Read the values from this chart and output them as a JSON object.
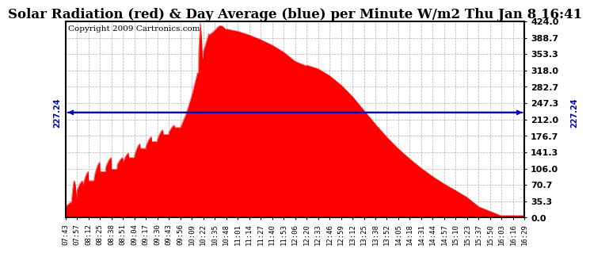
{
  "title": "Solar Radiation (red) & Day Average (blue) per Minute W/m2 Thu Jan 8 16:41",
  "copyright": "Copyright 2009 Cartronics.com",
  "y_min": 0.0,
  "y_max": 424.0,
  "y_ticks": [
    0.0,
    35.3,
    70.7,
    106.0,
    141.3,
    176.7,
    212.0,
    247.3,
    282.7,
    318.0,
    353.3,
    388.7,
    424.0
  ],
  "y_tick_labels": [
    "0.0",
    "35.3",
    "70.7",
    "106.0",
    "141.3",
    "176.7",
    "212.0",
    "247.3",
    "282.7",
    "318.0",
    "353.3",
    "388.7",
    "424.0"
  ],
  "avg_line_y": 227.24,
  "avg_label": "227.24",
  "fill_color": "#FF0000",
  "line_color": "#FF0000",
  "avg_line_color": "#0000BB",
  "background_color": "#FFFFFF",
  "plot_bg_color": "#FFFFFF",
  "grid_color": "#AAAAAA",
  "x_labels": [
    "07:43",
    "07:57",
    "08:12",
    "08:25",
    "08:38",
    "08:51",
    "09:04",
    "09:17",
    "09:30",
    "09:43",
    "09:56",
    "10:09",
    "10:22",
    "10:35",
    "10:48",
    "11:01",
    "11:14",
    "11:27",
    "11:40",
    "11:53",
    "12:06",
    "12:20",
    "12:33",
    "12:46",
    "12:59",
    "13:12",
    "13:25",
    "13:38",
    "13:52",
    "14:05",
    "14:18",
    "14:31",
    "14:44",
    "14:57",
    "15:10",
    "15:23",
    "15:37",
    "15:50",
    "16:03",
    "16:16",
    "16:29"
  ],
  "title_fontsize": 13,
  "tick_fontsize": 8,
  "copyright_fontsize": 7.5
}
